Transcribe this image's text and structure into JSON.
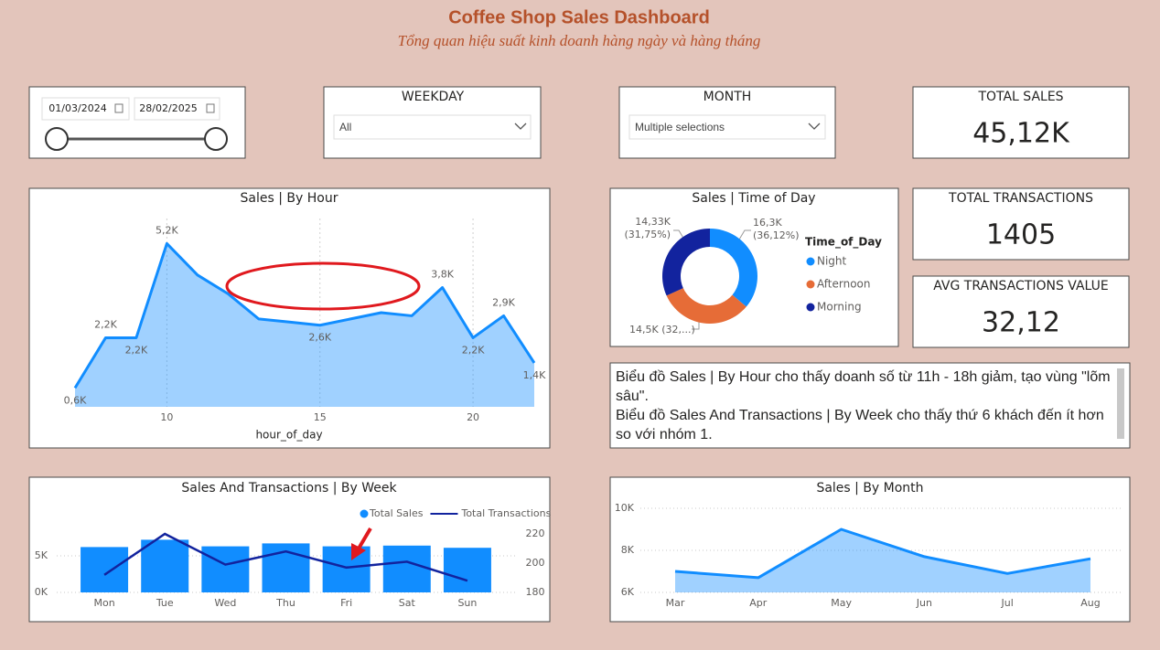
{
  "header": {
    "title": "Coffee Shop Sales Dashboard",
    "subtitle": "Tổng quan hiệu suất kinh doanh hàng ngày và hàng tháng"
  },
  "date_slicer": {
    "start": "01/03/2024",
    "end": "28/02/2025"
  },
  "weekday_slicer": {
    "title": "WEEKDAY",
    "value": "All"
  },
  "month_slicer": {
    "title": "MONTH",
    "value": "Multiple selections"
  },
  "cards": [
    {
      "title": "TOTAL SALES",
      "value": "45,12K"
    },
    {
      "title": "TOTAL TRANSACTIONS",
      "value": 1405
    },
    {
      "title": "AVG TRANSACTIONS VALUE",
      "value": "32,12"
    }
  ],
  "note": {
    "lines": [
      "Biểu đồ Sales | By Hour cho thấy doanh số từ 11h - 18h giảm, tạo vùng \"lõm sâu\".",
      "Biểu đồ Sales And Transactions | By Week cho thấy thứ 6 khách đến ít hơn so với nhóm 1."
    ]
  },
  "chart_data": [
    {
      "type": "area",
      "title": "Sales | By Hour",
      "xlabel": "hour_of_day",
      "x": [
        7,
        8,
        9,
        10,
        11,
        12,
        13,
        14,
        15,
        16,
        17,
        18,
        19,
        20,
        21,
        22
      ],
      "values": [
        0.6,
        2.2,
        2.2,
        5.2,
        4.2,
        3.6,
        2.8,
        2.7,
        2.6,
        2.8,
        3.0,
        2.9,
        3.8,
        2.2,
        2.9,
        1.4
      ],
      "value_labels": [
        "0,6K",
        "2,2K",
        "2,2K",
        "5,2K",
        null,
        null,
        null,
        null,
        "2,6K",
        null,
        null,
        null,
        "3,8K",
        "2,2K",
        "2,9K",
        "1,4K"
      ],
      "xlim": [
        7,
        22
      ],
      "xticks": [
        10,
        15,
        20
      ],
      "ylim": [
        0,
        6
      ],
      "color": "#118dff",
      "grid": true
    },
    {
      "type": "donut",
      "title": "Sales | Time of Day",
      "legend_title": "Time_of_Day",
      "legend": "right",
      "categories": [
        "Night",
        "Afternoon",
        "Morning"
      ],
      "values": [
        16.3,
        14.5,
        14.33
      ],
      "value_labels": [
        "16,3K (36,12%)",
        "14,5K (32,...)",
        "14,33K (31,75%)"
      ],
      "colors": [
        "#118dff",
        "#e66c37",
        "#12239e"
      ]
    },
    {
      "type": "combo",
      "title": "Sales And Transactions | By Week",
      "legend": "top-right",
      "grid": true,
      "categories": [
        "Mon",
        "Tue",
        "Wed",
        "Thu",
        "Fri",
        "Sat",
        "Sun"
      ],
      "series": [
        {
          "name": "Total Sales",
          "type": "bar",
          "color": "#118dff",
          "values": [
            6.2,
            7.2,
            6.3,
            6.7,
            6.3,
            6.4,
            6.1
          ]
        },
        {
          "name": "Total Transactions",
          "type": "line",
          "color": "#12239e",
          "axis": "y2",
          "values": [
            192,
            220,
            199,
            208,
            197,
            201,
            188
          ]
        }
      ],
      "ylim": [
        0,
        10
      ],
      "yticks": [
        {
          "value": 0,
          "label": "0K"
        },
        {
          "value": 5,
          "label": "5K"
        }
      ],
      "y2lim": [
        180,
        230
      ],
      "y2ticks": [
        180,
        200,
        220
      ]
    },
    {
      "type": "area",
      "title": "Sales | By Month",
      "categories": [
        "Mar",
        "Apr",
        "May",
        "Jun",
        "Jul",
        "Aug"
      ],
      "values": [
        7.0,
        6.7,
        9.0,
        7.7,
        6.9,
        7.6
      ],
      "ylim": [
        6,
        10
      ],
      "yticks": [
        {
          "value": 6,
          "label": "6K"
        },
        {
          "value": 8,
          "label": "8K"
        },
        {
          "value": 10,
          "label": "10K"
        }
      ],
      "color": "#118dff",
      "grid": true
    }
  ]
}
